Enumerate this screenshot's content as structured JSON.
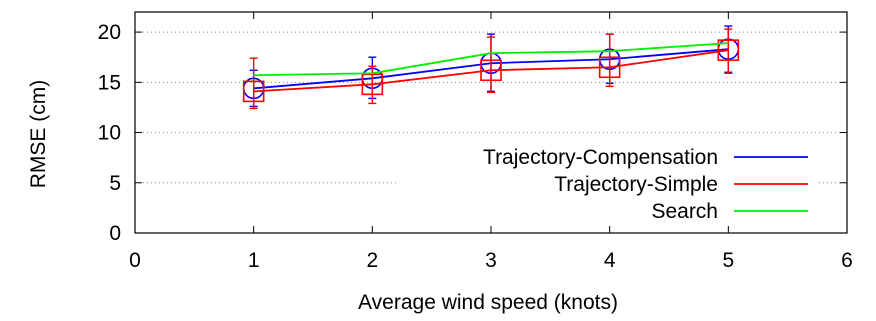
{
  "chart_data": {
    "type": "line",
    "title": "",
    "xlabel": "Average wind speed (knots)",
    "ylabel": "RMSE (cm)",
    "xlim": [
      0,
      6
    ],
    "ylim": [
      0,
      22
    ],
    "xticks": [
      0,
      1,
      2,
      3,
      4,
      5,
      6
    ],
    "yticks": [
      0,
      5,
      10,
      15,
      20
    ],
    "grid": "horizontal dotted",
    "legend_position": "bottom-right",
    "x": [
      1,
      2,
      3,
      4,
      5
    ],
    "series": [
      {
        "name": "Trajectory-Compensation",
        "color": "#0000ff",
        "marker": "circle",
        "values": [
          14.4,
          15.4,
          16.9,
          17.3,
          18.3
        ],
        "error_low": [
          12.6,
          13.4,
          14.1,
          14.9,
          16.0
        ],
        "error_high": [
          16.2,
          17.5,
          19.8,
          19.8,
          20.6
        ]
      },
      {
        "name": "Trajectory-Simple",
        "color": "#ff0000",
        "marker": "square",
        "values": [
          14.1,
          14.8,
          16.2,
          16.5,
          18.2
        ],
        "error_low": [
          12.4,
          12.9,
          14.0,
          14.6,
          15.9
        ],
        "error_high": [
          17.4,
          16.6,
          19.5,
          19.8,
          20.3
        ]
      },
      {
        "name": "Search",
        "color": "#00ee00",
        "marker": "none",
        "values": [
          15.7,
          15.9,
          17.9,
          18.1,
          18.9
        ]
      }
    ]
  }
}
